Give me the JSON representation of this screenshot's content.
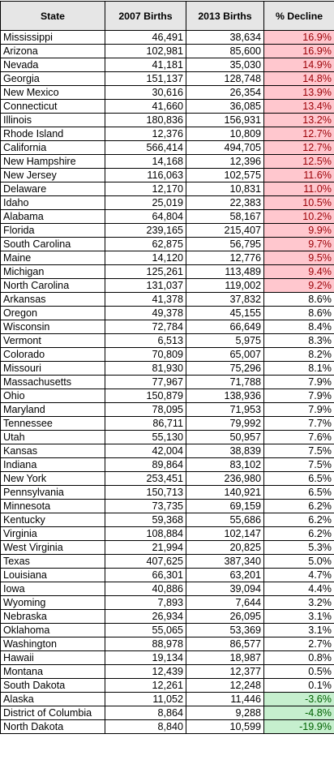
{
  "headers": {
    "state": "State",
    "births_2007": "2007 Births",
    "births_2013": "2013 Births",
    "decline": "% Decline"
  },
  "highlight_colors": {
    "red_fill": "#ffc7ce",
    "red_text": "#9c0006",
    "green_fill": "#c6efce",
    "green_text": "#006100"
  },
  "rows": [
    {
      "state": "Mississippi",
      "b2007": "46,491",
      "b2013": "38,634",
      "decline": "16.9%",
      "highlight": "red"
    },
    {
      "state": "Arizona",
      "b2007": "102,981",
      "b2013": "85,600",
      "decline": "16.9%",
      "highlight": "red"
    },
    {
      "state": "Nevada",
      "b2007": "41,181",
      "b2013": "35,030",
      "decline": "14.9%",
      "highlight": "red"
    },
    {
      "state": "Georgia",
      "b2007": "151,137",
      "b2013": "128,748",
      "decline": "14.8%",
      "highlight": "red"
    },
    {
      "state": "New Mexico",
      "b2007": "30,616",
      "b2013": "26,354",
      "decline": "13.9%",
      "highlight": "red"
    },
    {
      "state": "Connecticut",
      "b2007": "41,660",
      "b2013": "36,085",
      "decline": "13.4%",
      "highlight": "red"
    },
    {
      "state": "Illinois",
      "b2007": "180,836",
      "b2013": "156,931",
      "decline": "13.2%",
      "highlight": "red"
    },
    {
      "state": "Rhode Island",
      "b2007": "12,376",
      "b2013": "10,809",
      "decline": "12.7%",
      "highlight": "red"
    },
    {
      "state": "California",
      "b2007": "566,414",
      "b2013": "494,705",
      "decline": "12.7%",
      "highlight": "red"
    },
    {
      "state": "New Hampshire",
      "b2007": "14,168",
      "b2013": "12,396",
      "decline": "12.5%",
      "highlight": "red"
    },
    {
      "state": "New Jersey",
      "b2007": "116,063",
      "b2013": "102,575",
      "decline": "11.6%",
      "highlight": "red"
    },
    {
      "state": "Delaware",
      "b2007": "12,170",
      "b2013": "10,831",
      "decline": "11.0%",
      "highlight": "red"
    },
    {
      "state": "Idaho",
      "b2007": "25,019",
      "b2013": "22,383",
      "decline": "10.5%",
      "highlight": "red"
    },
    {
      "state": "Alabama",
      "b2007": "64,804",
      "b2013": "58,167",
      "decline": "10.2%",
      "highlight": "red"
    },
    {
      "state": "Florida",
      "b2007": "239,165",
      "b2013": "215,407",
      "decline": "9.9%",
      "highlight": "red"
    },
    {
      "state": "South Carolina",
      "b2007": "62,875",
      "b2013": "56,795",
      "decline": "9.7%",
      "highlight": "red"
    },
    {
      "state": "Maine",
      "b2007": "14,120",
      "b2013": "12,776",
      "decline": "9.5%",
      "highlight": "red"
    },
    {
      "state": "Michigan",
      "b2007": "125,261",
      "b2013": "113,489",
      "decline": "9.4%",
      "highlight": "red"
    },
    {
      "state": "North Carolina",
      "b2007": "131,037",
      "b2013": "119,002",
      "decline": "9.2%",
      "highlight": "red"
    },
    {
      "state": "Arkansas",
      "b2007": "41,378",
      "b2013": "37,832",
      "decline": "8.6%",
      "highlight": ""
    },
    {
      "state": "Oregon",
      "b2007": "49,378",
      "b2013": "45,155",
      "decline": "8.6%",
      "highlight": ""
    },
    {
      "state": "Wisconsin",
      "b2007": "72,784",
      "b2013": "66,649",
      "decline": "8.4%",
      "highlight": ""
    },
    {
      "state": "Vermont",
      "b2007": "6,513",
      "b2013": "5,975",
      "decline": "8.3%",
      "highlight": ""
    },
    {
      "state": "Colorado",
      "b2007": "70,809",
      "b2013": "65,007",
      "decline": "8.2%",
      "highlight": ""
    },
    {
      "state": "Missouri",
      "b2007": "81,930",
      "b2013": "75,296",
      "decline": "8.1%",
      "highlight": ""
    },
    {
      "state": "Massachusetts",
      "b2007": "77,967",
      "b2013": "71,788",
      "decline": "7.9%",
      "highlight": ""
    },
    {
      "state": "Ohio",
      "b2007": "150,879",
      "b2013": "138,936",
      "decline": "7.9%",
      "highlight": ""
    },
    {
      "state": "Maryland",
      "b2007": "78,095",
      "b2013": "71,953",
      "decline": "7.9%",
      "highlight": ""
    },
    {
      "state": "Tennessee",
      "b2007": "86,711",
      "b2013": "79,992",
      "decline": "7.7%",
      "highlight": ""
    },
    {
      "state": "Utah",
      "b2007": "55,130",
      "b2013": "50,957",
      "decline": "7.6%",
      "highlight": ""
    },
    {
      "state": "Kansas",
      "b2007": "42,004",
      "b2013": "38,839",
      "decline": "7.5%",
      "highlight": ""
    },
    {
      "state": "Indiana",
      "b2007": "89,864",
      "b2013": "83,102",
      "decline": "7.5%",
      "highlight": ""
    },
    {
      "state": "New York",
      "b2007": "253,451",
      "b2013": "236,980",
      "decline": "6.5%",
      "highlight": ""
    },
    {
      "state": "Pennsylvania",
      "b2007": "150,713",
      "b2013": "140,921",
      "decline": "6.5%",
      "highlight": ""
    },
    {
      "state": "Minnesota",
      "b2007": "73,735",
      "b2013": "69,159",
      "decline": "6.2%",
      "highlight": ""
    },
    {
      "state": "Kentucky",
      "b2007": "59,368",
      "b2013": "55,686",
      "decline": "6.2%",
      "highlight": ""
    },
    {
      "state": "Virginia",
      "b2007": "108,884",
      "b2013": "102,147",
      "decline": "6.2%",
      "highlight": ""
    },
    {
      "state": "West Virginia",
      "b2007": "21,994",
      "b2013": "20,825",
      "decline": "5.3%",
      "highlight": ""
    },
    {
      "state": "Texas",
      "b2007": "407,625",
      "b2013": "387,340",
      "decline": "5.0%",
      "highlight": ""
    },
    {
      "state": "Louisiana",
      "b2007": "66,301",
      "b2013": "63,201",
      "decline": "4.7%",
      "highlight": ""
    },
    {
      "state": "Iowa",
      "b2007": "40,886",
      "b2013": "39,094",
      "decline": "4.4%",
      "highlight": ""
    },
    {
      "state": "Wyoming",
      "b2007": "7,893",
      "b2013": "7,644",
      "decline": "3.2%",
      "highlight": ""
    },
    {
      "state": "Nebraska",
      "b2007": "26,934",
      "b2013": "26,095",
      "decline": "3.1%",
      "highlight": ""
    },
    {
      "state": "Oklahoma",
      "b2007": "55,065",
      "b2013": "53,369",
      "decline": "3.1%",
      "highlight": ""
    },
    {
      "state": "Washington",
      "b2007": "88,978",
      "b2013": "86,577",
      "decline": "2.7%",
      "highlight": ""
    },
    {
      "state": "Hawaii",
      "b2007": "19,134",
      "b2013": "18,987",
      "decline": "0.8%",
      "highlight": ""
    },
    {
      "state": "Montana",
      "b2007": "12,439",
      "b2013": "12,377",
      "decline": "0.5%",
      "highlight": ""
    },
    {
      "state": "South Dakota",
      "b2007": "12,261",
      "b2013": "12,248",
      "decline": "0.1%",
      "highlight": ""
    },
    {
      "state": "Alaska",
      "b2007": "11,052",
      "b2013": "11,446",
      "decline": "-3.6%",
      "highlight": "green"
    },
    {
      "state": "District of Columbia",
      "b2007": "8,864",
      "b2013": "9,288",
      "decline": "-4.8%",
      "highlight": "green"
    },
    {
      "state": "North Dakota",
      "b2007": "8,840",
      "b2013": "10,599",
      "decline": "-19.9%",
      "highlight": "green"
    }
  ]
}
